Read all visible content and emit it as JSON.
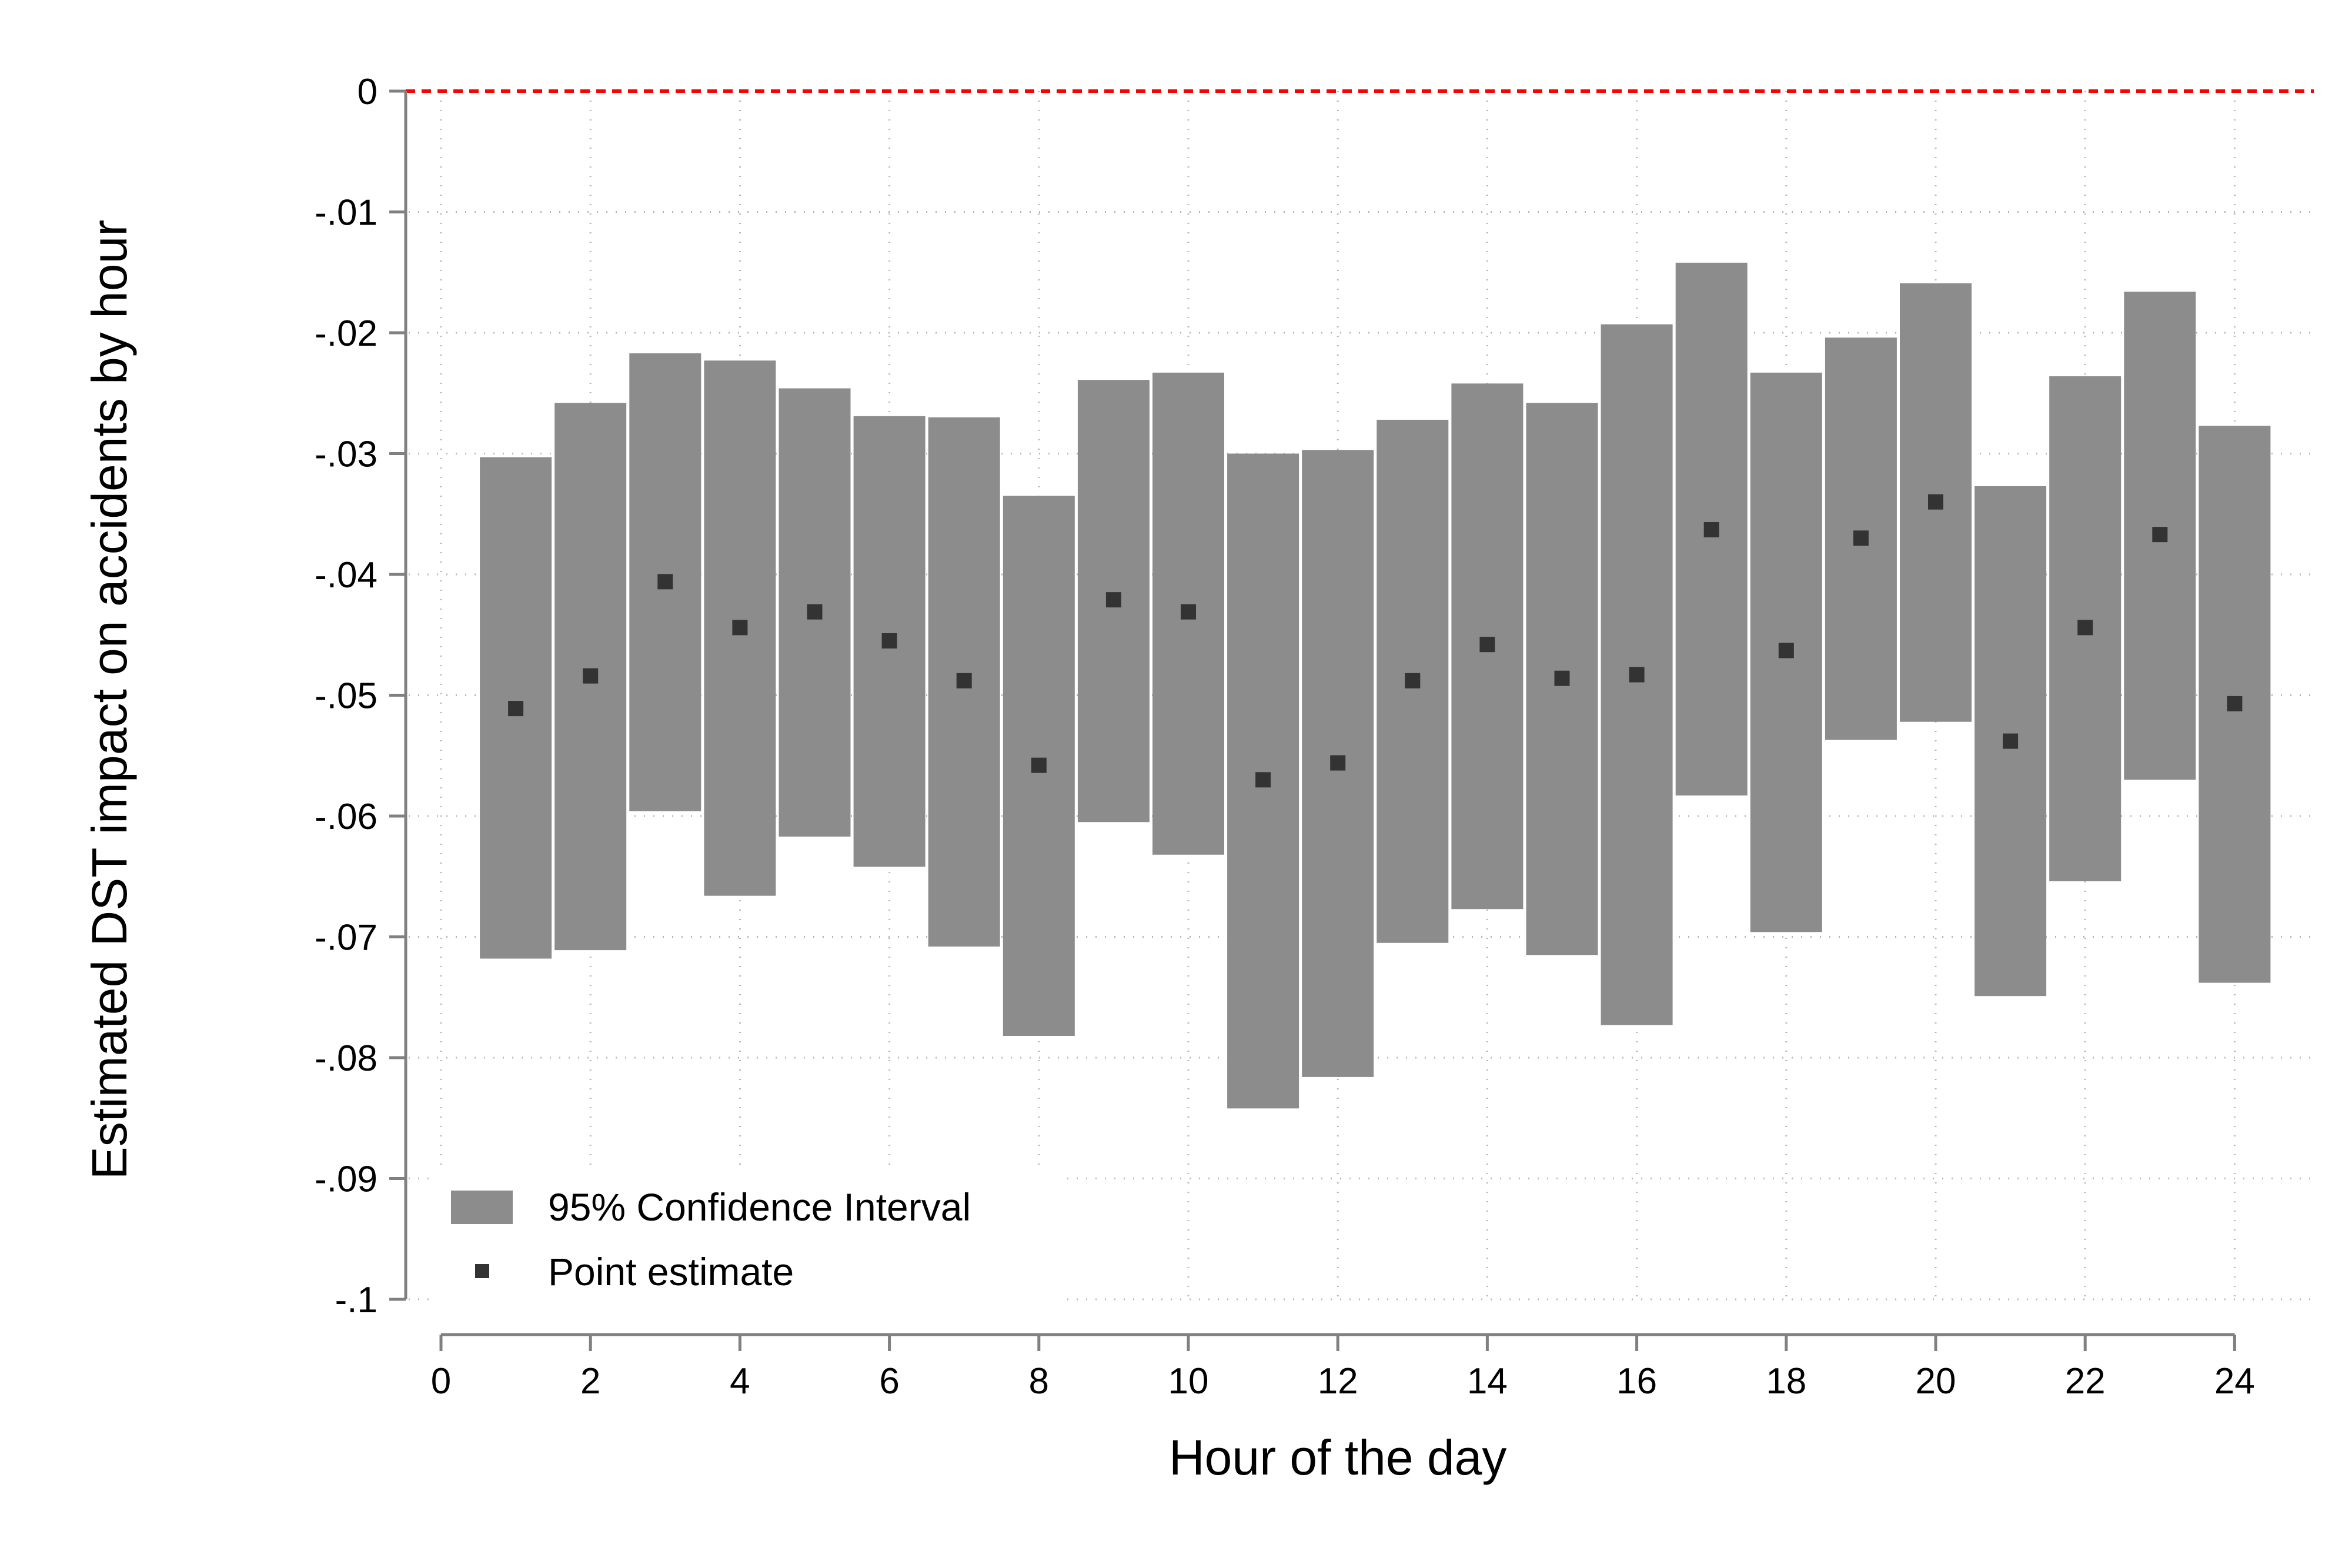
{
  "chart_data": {
    "type": "bar",
    "title": "",
    "xlabel": "Hour of the day",
    "ylabel": "Estimated DST impact on accidents by hour",
    "xlim": [
      0,
      24
    ],
    "ylim": [
      -0.1,
      0
    ],
    "x_ticks": [
      {
        "value": 0,
        "label": "0"
      },
      {
        "value": 2,
        "label": "2"
      },
      {
        "value": 4,
        "label": "4"
      },
      {
        "value": 6,
        "label": "6"
      },
      {
        "value": 8,
        "label": "8"
      },
      {
        "value": 10,
        "label": "10"
      },
      {
        "value": 12,
        "label": "12"
      },
      {
        "value": 14,
        "label": "14"
      },
      {
        "value": 16,
        "label": "16"
      },
      {
        "value": 18,
        "label": "18"
      },
      {
        "value": 20,
        "label": "20"
      },
      {
        "value": 22,
        "label": "22"
      },
      {
        "value": 24,
        "label": "24"
      }
    ],
    "y_ticks": [
      {
        "value": 0,
        "label": "0"
      },
      {
        "value": -0.01,
        "label": "-.01"
      },
      {
        "value": -0.02,
        "label": "-.02"
      },
      {
        "value": -0.03,
        "label": "-.03"
      },
      {
        "value": -0.04,
        "label": "-.04"
      },
      {
        "value": -0.05,
        "label": "-.05"
      },
      {
        "value": -0.06,
        "label": "-.06"
      },
      {
        "value": -0.07,
        "label": "-.07"
      },
      {
        "value": -0.08,
        "label": "-.08"
      },
      {
        "value": -0.09,
        "label": "-.09"
      },
      {
        "value": -0.1,
        "label": "-.1"
      }
    ],
    "grid": true,
    "reference_line": {
      "y": 0,
      "color": "#ff0000",
      "style": "dashed"
    },
    "legend": {
      "placement": "bottom-left",
      "entries": [
        {
          "label": "95% Confidence Interval",
          "marker": "box"
        },
        {
          "label": "Point estimate",
          "marker": "square"
        }
      ]
    },
    "colors": {
      "ci": "#8c8c8c",
      "point": "#333333",
      "reference": "#ff0000"
    },
    "x": [
      1,
      2,
      3,
      4,
      5,
      6,
      7,
      8,
      9,
      10,
      11,
      12,
      13,
      14,
      15,
      16,
      17,
      18,
      19,
      20,
      21,
      22,
      23,
      24
    ],
    "series": [
      {
        "name": "95% Confidence Interval",
        "low": [
          -0.0718,
          -0.0711,
          -0.0596,
          -0.0666,
          -0.0617,
          -0.0642,
          -0.0708,
          -0.0782,
          -0.0605,
          -0.0632,
          -0.0842,
          -0.0816,
          -0.0705,
          -0.0677,
          -0.0715,
          -0.0773,
          -0.0583,
          -0.0696,
          -0.0537,
          -0.0522,
          -0.0749,
          -0.0654,
          -0.057,
          -0.0738
        ],
        "high": [
          -0.0303,
          -0.0258,
          -0.0217,
          -0.0223,
          -0.0246,
          -0.0269,
          -0.027,
          -0.0335,
          -0.0239,
          -0.0233,
          -0.03,
          -0.0297,
          -0.0272,
          -0.0242,
          -0.0258,
          -0.0193,
          -0.0142,
          -0.0233,
          -0.0204,
          -0.0159,
          -0.0327,
          -0.0236,
          -0.0166,
          -0.0277
        ]
      },
      {
        "name": "Point estimate",
        "values": [
          -0.0511,
          -0.0484,
          -0.0406,
          -0.0444,
          -0.0431,
          -0.0455,
          -0.0488,
          -0.0558,
          -0.0421,
          -0.0431,
          -0.057,
          -0.0556,
          -0.0488,
          -0.0458,
          -0.0486,
          -0.0483,
          -0.0363,
          -0.0463,
          -0.037,
          -0.034,
          -0.0538,
          -0.0444,
          -0.0367,
          -0.0507
        ]
      }
    ]
  }
}
